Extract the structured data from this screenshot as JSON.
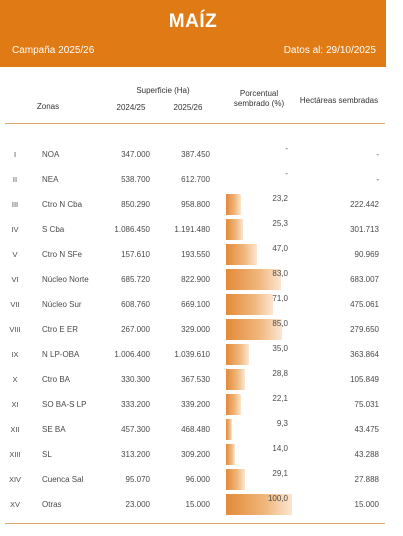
{
  "header": {
    "title": "MAÍZ",
    "campaign": "Campaña 2025/26",
    "date": "Datos al: 29/10/2025"
  },
  "columns": {
    "zonas": "Zonas",
    "superficie": "Superficie (Ha)",
    "year_a": "2024/25",
    "year_b": "2025/26",
    "porcentual_1": "Porcentual",
    "porcentual_2": "sembrado (%)",
    "hectareas": "Hectáreas sembradas"
  },
  "rows": [
    {
      "roman": "I",
      "zona": "NOA",
      "a": "347.000",
      "b": "387.450",
      "pct": "-",
      "pct_value": 0,
      "hec": "-"
    },
    {
      "roman": "II",
      "zona": "NEA",
      "a": "538.700",
      "b": "612.700",
      "pct": "-",
      "pct_value": 0,
      "hec": "-"
    },
    {
      "roman": "III",
      "zona": "Ctro N Cba",
      "a": "850.290",
      "b": "958.800",
      "pct": "23,2",
      "pct_value": 23.2,
      "hec": "222.442"
    },
    {
      "roman": "IV",
      "zona": "S Cba",
      "a": "1.086.450",
      "b": "1.191.480",
      "pct": "25,3",
      "pct_value": 25.3,
      "hec": "301.713"
    },
    {
      "roman": "V",
      "zona": "Ctro N SFe",
      "a": "157.610",
      "b": "193.550",
      "pct": "47,0",
      "pct_value": 47.0,
      "hec": "90.969"
    },
    {
      "roman": "VI",
      "zona": "Núcleo Norte",
      "a": "685.720",
      "b": "822.900",
      "pct": "83,0",
      "pct_value": 83.0,
      "hec": "683.007"
    },
    {
      "roman": "VII",
      "zona": "Núcleo Sur",
      "a": "608.760",
      "b": "669.100",
      "pct": "71,0",
      "pct_value": 71.0,
      "hec": "475.061"
    },
    {
      "roman": "VIII",
      "zona": "Ctro E ER",
      "a": "267.000",
      "b": "329.000",
      "pct": "85,0",
      "pct_value": 85.0,
      "hec": "279.650"
    },
    {
      "roman": "IX",
      "zona": "N LP-OBA",
      "a": "1.006.400",
      "b": "1.039.610",
      "pct": "35,0",
      "pct_value": 35.0,
      "hec": "363.864"
    },
    {
      "roman": "X",
      "zona": "Ctro BA",
      "a": "330.300",
      "b": "367.530",
      "pct": "28,8",
      "pct_value": 28.8,
      "hec": "105.849"
    },
    {
      "roman": "XI",
      "zona": "SO BA-S LP",
      "a": "333.200",
      "b": "339.200",
      "pct": "22,1",
      "pct_value": 22.1,
      "hec": "75.031"
    },
    {
      "roman": "XII",
      "zona": "SE BA",
      "a": "457.300",
      "b": "468.480",
      "pct": "9,3",
      "pct_value": 9.3,
      "hec": "43.475"
    },
    {
      "roman": "XIII",
      "zona": "SL",
      "a": "313.200",
      "b": "309.200",
      "pct": "14,0",
      "pct_value": 14.0,
      "hec": "43.288"
    },
    {
      "roman": "XIV",
      "zona": "Cuenca Sal",
      "a": "95.070",
      "b": "96.000",
      "pct": "29,1",
      "pct_value": 29.1,
      "hec": "27.888"
    },
    {
      "roman": "XV",
      "zona": "Otras",
      "a": "23.000",
      "b": "15.000",
      "pct": "100,0",
      "pct_value": 100.0,
      "hec": "15.000"
    }
  ],
  "colors": {
    "banner": "#e07a15",
    "bar": "#e38a38",
    "rule": "#d9a56b"
  }
}
